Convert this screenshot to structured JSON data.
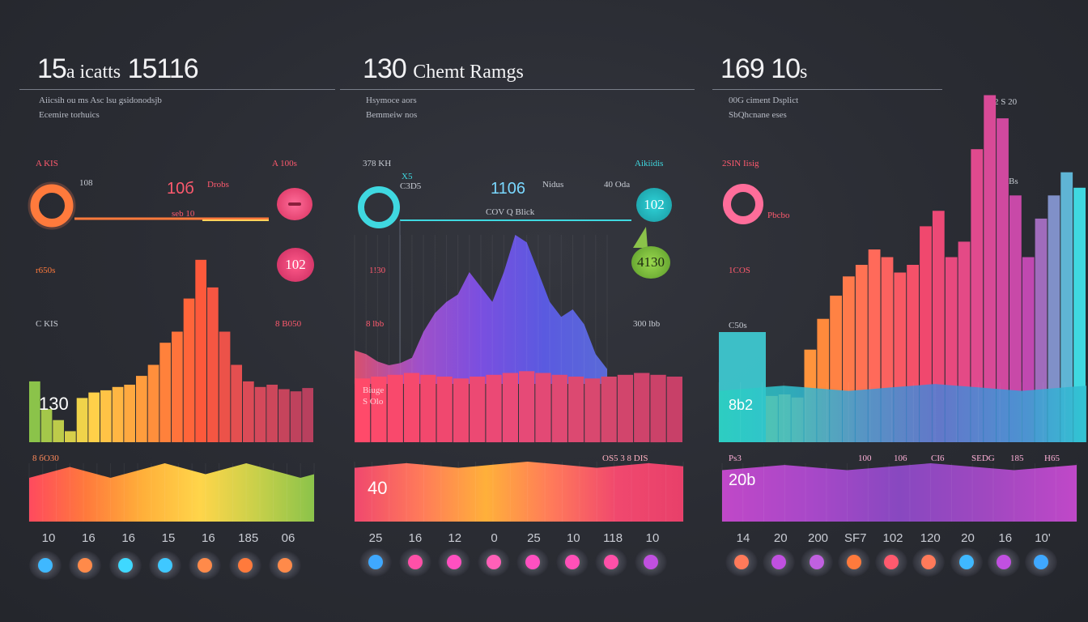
{
  "colors": {
    "bg": "#2a2c33",
    "orange": "#ff7a3c",
    "pink": "#f0487a",
    "teal": "#3fd8e0",
    "purple": "#7a4fe0",
    "green": "#8bc34a"
  },
  "panels": [
    {
      "title_big": "15",
      "title_small": "a icatts",
      "title_big2": "15116",
      "subtitle_1": "Aiicsih ou ms Asc lsu gsidonodsjb",
      "subtitle_2": "Ecemire torhuics",
      "labels": {
        "l1": "A KIS",
        "l2": "A 100s",
        "l3": "108",
        "l4": "10б",
        "l5": "Drobs",
        "l6": "seb 10",
        "l7": "r650s",
        "l8": "C KIS",
        "l9": "8 B050",
        "l10": "8 бО30",
        "inbar": "130",
        "badge": "102"
      },
      "ticks": [
        "10",
        "16",
        "16",
        "15",
        "16",
        "185",
        "06"
      ]
    },
    {
      "title_big": "130",
      "title_small": "Chemt Ramgs",
      "subtitle_1": "Hsymoce aors",
      "subtitle_2": "Bemmeiw nos",
      "labels": {
        "l1": "378 KH",
        "l2": "X5",
        "l3": "C3D5",
        "l4": "1106",
        "l5": "Nidus",
        "l6": "Aikiidis",
        "l7": "40 Oda",
        "l8": "COV Q Blick",
        "l9": "1!30",
        "l10": "8 lbb",
        "l11": "300 lbb",
        "l12": "Biuge",
        "l13": "S Olo",
        "l14": "OS5 3 8 DIS",
        "inbar": "40",
        "badge1": "102",
        "badge2": "4130"
      },
      "ticks": [
        "25",
        "16",
        "12",
        "0",
        "25",
        "10",
        "118",
        "10"
      ]
    },
    {
      "title_big": "169",
      "title_big2": "10",
      "title_small": "s",
      "subtitle_1": "00G ciment Dsplict",
      "subtitle_2": "SbQhcnane eses",
      "labels": {
        "l1": "2 S 20",
        "l2": "2SIN Iisig",
        "l3": "Bs",
        "l4": "Pbcbo",
        "l5": "1COS",
        "l6": "C50s",
        "l7": "Ps3",
        "inbar": "8b2",
        "inbar2": "20b",
        "l8": "100",
        "l9": "106",
        "l10": "CI6",
        "l11": "SEDG",
        "l12": "185",
        "l13": "H65"
      },
      "ticks": [
        "14",
        "20",
        "200",
        "SF7",
        "102",
        "120",
        "20",
        "16",
        "10'"
      ]
    }
  ],
  "chart_data": [
    {
      "type": "bar",
      "title": "15 a icatts 15116",
      "values": [
        55,
        30,
        20,
        10,
        40,
        45,
        47,
        50,
        52,
        60,
        70,
        90,
        100,
        130,
        165,
        140,
        100,
        70,
        55,
        50,
        52,
        48,
        46,
        49
      ],
      "band_values": [
        12,
        13,
        14,
        15,
        14,
        13,
        12,
        13,
        14,
        15,
        16,
        15,
        14,
        13,
        14,
        15,
        16,
        15,
        14,
        13,
        12,
        13
      ],
      "ticks": [
        "10",
        "16",
        "16",
        "15",
        "16",
        "185",
        "06"
      ]
    },
    {
      "type": "area",
      "title": "130 Chemt Ramgs",
      "values": [
        45,
        40,
        30,
        25,
        28,
        35,
        70,
        95,
        110,
        120,
        150,
        130,
        110,
        150,
        200,
        190,
        150,
        110,
        90,
        100,
        80,
        40,
        20
      ],
      "band_values": [
        70,
        72,
        74,
        76,
        74,
        72,
        70,
        72,
        74,
        76,
        78,
        76,
        74,
        72,
        70,
        72,
        74,
        76,
        74,
        72
      ],
      "ticks": [
        "25",
        "16",
        "12",
        "0",
        "25",
        "10",
        "118",
        "10"
      ]
    },
    {
      "type": "area",
      "title": "169 10s",
      "values": [
        60,
        62,
        58,
        120,
        160,
        190,
        215,
        230,
        250,
        240,
        220,
        230,
        280,
        300,
        240,
        260,
        380,
        450,
        420,
        320,
        240,
        290,
        320,
        350,
        330
      ],
      "band_values": [
        60,
        62,
        64,
        66,
        64,
        62,
        60,
        62,
        64,
        66,
        68,
        66,
        64,
        62,
        60,
        62,
        64,
        66
      ],
      "ticks": [
        "14",
        "20",
        "200",
        "SF7",
        "102",
        "120",
        "20",
        "16",
        "10'"
      ]
    }
  ]
}
